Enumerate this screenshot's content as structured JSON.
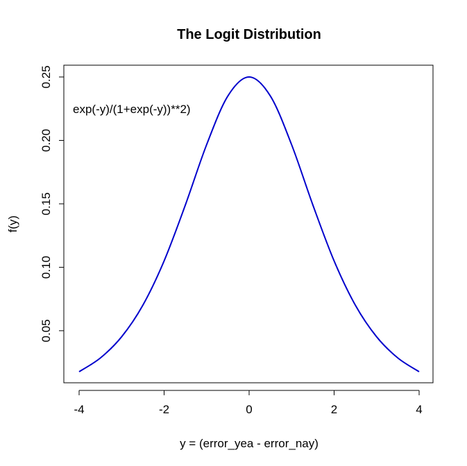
{
  "chart_data": {
    "type": "line",
    "title": "The Logit Distribution",
    "xlabel": "y = (error_yea - error_nay)",
    "ylabel": "f(y)",
    "annotation": "exp(-y)/(1+exp(-y))**2)",
    "xlim": [
      -4,
      4
    ],
    "ylim": [
      0.0177,
      0.25
    ],
    "x_ticks": [
      -4,
      -2,
      0,
      2,
      4
    ],
    "x_tick_labels": [
      "-4",
      "-2",
      "0",
      "2",
      "4"
    ],
    "y_ticks": [
      0.05,
      0.1,
      0.15,
      0.2,
      0.25
    ],
    "y_tick_labels": [
      "0.05",
      "0.10",
      "0.15",
      "0.20",
      "0.25"
    ],
    "grid": false,
    "series": [
      {
        "color": "#0000cc",
        "x": [
          -4.0,
          -3.5,
          -3.0,
          -2.5,
          -2.0,
          -1.5,
          -1.0,
          -0.5,
          0.0,
          0.5,
          1.0,
          1.5,
          2.0,
          2.5,
          3.0,
          3.5,
          4.0
        ],
        "y": [
          0.0177,
          0.0285,
          0.0452,
          0.0701,
          0.105,
          0.1491,
          0.1966,
          0.235,
          0.25,
          0.235,
          0.1966,
          0.1491,
          0.105,
          0.0701,
          0.0452,
          0.0285,
          0.0177
        ]
      }
    ]
  }
}
